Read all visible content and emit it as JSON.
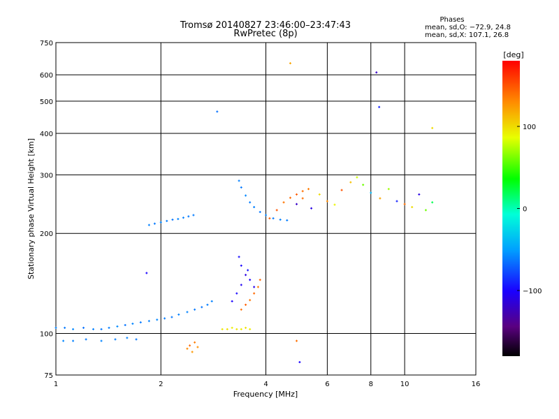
{
  "chart_data": {
    "type": "scatter",
    "title": "Tromsø 20140827 23:46:00–23:47:43",
    "subtitle": "RwPretec (8p)",
    "stats": {
      "heading": "Phases",
      "line1": "mean, sd,O: −72.9, 24.8",
      "line2": "mean, sd,X: 107.1, 26.8"
    },
    "xlabel": "Frequency [MHz]",
    "ylabel": "Stationary phase Virtual Height [km]",
    "xscale": "log",
    "yscale": "log",
    "xlim": [
      1,
      16
    ],
    "ylim": [
      75,
      750
    ],
    "xticks": [
      1,
      2,
      4,
      6,
      8,
      10,
      16
    ],
    "xtick_labels": [
      "1",
      "2",
      "4",
      "6",
      "8",
      "10",
      "16"
    ],
    "yticks": [
      75,
      100,
      200,
      300,
      400,
      500,
      600,
      750
    ],
    "ytick_labels": [
      "75",
      "100",
      "200",
      "300",
      "400",
      "500",
      "600",
      "750"
    ],
    "grid": true,
    "colorbar": {
      "label": "[deg]",
      "range": [
        -180,
        180
      ],
      "ticks": [
        100,
        0,
        -100
      ],
      "tick_labels": [
        "100",
        "0",
        "−100"
      ]
    },
    "series": [
      {
        "group": "O-mode E-region trace",
        "x": [
          1.0,
          1.06,
          1.12,
          1.2,
          1.28,
          1.35,
          1.42,
          1.5,
          1.58,
          1.66,
          1.75,
          1.85,
          1.95,
          2.05,
          2.15,
          2.25,
          2.38,
          2.5,
          2.62,
          2.72,
          2.8
        ],
        "y": [
          104,
          104,
          103,
          104,
          103,
          103,
          104,
          105,
          106,
          107,
          108,
          109,
          110,
          111,
          112,
          114,
          116,
          118,
          120,
          122,
          125
        ],
        "phase": [
          -60,
          -62,
          -58,
          -65,
          -60,
          -63,
          -61,
          -57,
          -64,
          -59,
          -62,
          -60,
          -58,
          -61,
          -63,
          -60,
          -59,
          -62,
          -64,
          -61,
          -60
        ]
      },
      {
        "group": "O-mode lower layer",
        "x": [
          1.05,
          1.12,
          1.22,
          1.35,
          1.48,
          1.6,
          1.7
        ],
        "y": [
          95,
          95,
          96,
          95,
          96,
          97,
          96
        ],
        "phase": [
          -58,
          -60,
          -62,
          -59,
          -61,
          -60,
          -63
        ]
      },
      {
        "group": "Sporadic trace",
        "x": [
          1.85,
          1.92,
          2.0,
          2.08,
          2.16,
          2.24,
          2.32,
          2.4,
          2.48
        ],
        "y": [
          212,
          214,
          216,
          218,
          220,
          221,
          223,
          225,
          227
        ],
        "phase": [
          -60,
          -62,
          -58,
          -61,
          -63,
          -59,
          -60,
          -62,
          -61
        ]
      },
      {
        "group": "Low-frequency X-mode",
        "x": [
          2.38,
          2.42,
          2.46,
          2.5,
          2.55
        ],
        "y": [
          90,
          92,
          88,
          94,
          91
        ],
        "phase": [
          130,
          140,
          125,
          135,
          128
        ]
      },
      {
        "group": "E-layer X-mode",
        "x": [
          3.0,
          3.1,
          3.2,
          3.3,
          3.4,
          3.5,
          3.6
        ],
        "y": [
          103,
          103,
          104,
          103,
          103,
          104,
          103
        ],
        "phase": [
          95,
          98,
          92,
          96,
          94,
          97,
          93
        ]
      },
      {
        "group": "E-F transition O-mode",
        "x": [
          3.2,
          3.3,
          3.4,
          3.5,
          3.55,
          3.6,
          3.7,
          3.4,
          3.35
        ],
        "y": [
          125,
          132,
          140,
          150,
          155,
          145,
          138,
          160,
          170
        ],
        "phase": [
          -100,
          -98,
          -105,
          -110,
          -95,
          -102,
          -108,
          -100,
          -97
        ]
      },
      {
        "group": "E-F transition X-mode",
        "x": [
          3.4,
          3.5,
          3.6,
          3.7,
          3.8,
          3.85
        ],
        "y": [
          118,
          122,
          126,
          132,
          138,
          145
        ],
        "phase": [
          140,
          145,
          138,
          142,
          136,
          144
        ]
      },
      {
        "group": "F-layer O-mode cusp",
        "x": [
          3.35,
          3.4,
          3.5,
          3.6,
          3.7,
          3.85,
          4.0,
          4.2,
          4.4,
          4.6
        ],
        "y": [
          288,
          275,
          260,
          248,
          240,
          232,
          227,
          222,
          220,
          219
        ],
        "phase": [
          -60,
          -62,
          -58,
          -61,
          -60,
          -63,
          -59,
          -62,
          -60,
          -61
        ]
      },
      {
        "group": "F-layer X-mode",
        "x": [
          4.1,
          4.3,
          4.5,
          4.7,
          4.9,
          5.1,
          5.3
        ],
        "y": [
          222,
          235,
          248,
          256,
          262,
          268,
          272
        ],
        "phase": [
          145,
          150,
          138,
          142,
          147,
          140,
          136
        ]
      },
      {
        "group": "F-layer scatter",
        "x": [
          4.9,
          5.1,
          5.4,
          5.7,
          6.0,
          6.3,
          6.6,
          7.0,
          7.3,
          7.6,
          8.0,
          8.5,
          9.0,
          9.5,
          10.0,
          10.5,
          11.0,
          11.5,
          12.0
        ],
        "y": [
          245,
          255,
          238,
          262,
          250,
          244,
          270,
          285,
          295,
          280,
          265,
          255,
          272,
          250,
          245,
          240,
          262,
          235,
          248
        ],
        "phase": [
          -120,
          140,
          -110,
          100,
          130,
          90,
          150,
          110,
          80,
          60,
          -40,
          120,
          70,
          -90,
          140,
          100,
          -110,
          60,
          20
        ]
      },
      {
        "group": "Isolated points",
        "x": [
          1.82,
          2.9,
          4.7,
          8.3,
          8.45,
          12.0,
          5.0,
          4.9
        ],
        "y": [
          152,
          465,
          650,
          610,
          480,
          415,
          82,
          95
        ],
        "phase": [
          -100,
          -65,
          120,
          -120,
          -90,
          100,
          -100,
          140
        ]
      }
    ]
  }
}
